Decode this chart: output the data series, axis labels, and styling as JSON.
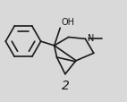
{
  "background_color": "#d9d9d9",
  "line_color": "#1a1a1a",
  "line_width": 1.2,
  "label": "2",
  "label_fontsize": 10,
  "oh_label": "OH",
  "n_label": "N",
  "oh_fontsize": 7.0,
  "n_fontsize": 7.0
}
